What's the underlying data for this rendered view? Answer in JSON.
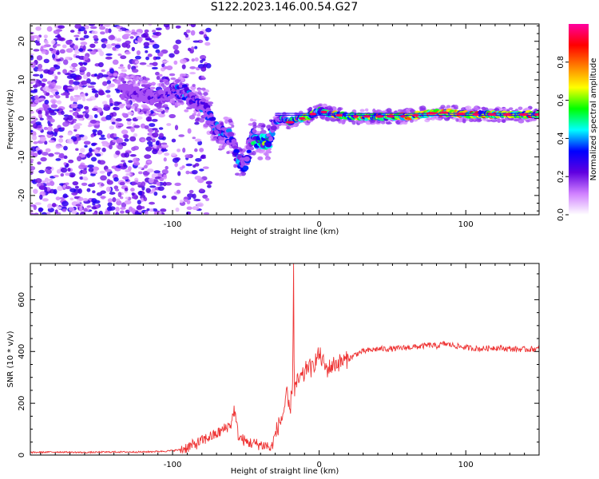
{
  "title": "S122.2023.146.00.54.G27",
  "chart_data": [
    {
      "type": "heatmap",
      "xlabel": "Height of straight line (km)",
      "ylabel": "Frequency (Hz)",
      "xlim": [
        -197,
        150
      ],
      "ylim": [
        -25,
        24.5
      ],
      "x_ticks": [
        "-100",
        "0",
        "100"
      ],
      "x_tick_values": [
        -100,
        0,
        100
      ],
      "y_ticks": [
        "-20",
        "-10",
        "0",
        "10",
        "20"
      ],
      "y_tick_values": [
        -20,
        -10,
        0,
        10,
        20
      ],
      "colorbar": {
        "label": "Normalized spectral amplitude",
        "range": [
          0,
          1
        ],
        "ticks": [
          "0.0",
          "0.2",
          "0.4",
          "0.6",
          "0.8"
        ],
        "tick_values": [
          0,
          0.2,
          0.4,
          0.6,
          0.8
        ],
        "colors": [
          "#ffffff",
          "#d080ff",
          "#6000e0",
          "#0000ff",
          "#00ffff",
          "#00ff00",
          "#ffff00",
          "#ff8000",
          "#ff0000",
          "#ff00a0"
        ]
      },
      "ridge": {
        "x": [
          -130,
          -118,
          -110,
          -100,
          -92,
          -85,
          -78,
          -72,
          -66,
          -60,
          -55,
          -50,
          -46,
          -42,
          -38,
          -34,
          -30,
          -25,
          -20,
          -15,
          -10,
          -5,
          0,
          10,
          20,
          30,
          40,
          50,
          60,
          70,
          80,
          90,
          100,
          110,
          120,
          150
        ],
        "y": [
          7,
          6,
          5,
          7,
          7,
          4,
          3,
          -2,
          -4,
          -5,
          -11,
          -12,
          -4,
          -6,
          -6,
          -6,
          -1,
          0,
          -1,
          0,
          0,
          1,
          2,
          1,
          0.5,
          0.5,
          0.5,
          0.5,
          0.5,
          1,
          1.5,
          1.5,
          1,
          1,
          1,
          1
        ],
        "amplitude": [
          0.25,
          0.25,
          0.3,
          0.35,
          0.45,
          0.35,
          0.4,
          0.4,
          0.45,
          0.4,
          0.45,
          0.4,
          0.45,
          0.7,
          0.7,
          0.6,
          0.4,
          0.5,
          0.6,
          0.7,
          0.75,
          0.7,
          0.6,
          0.8,
          0.85,
          0.85,
          0.85,
          0.9,
          0.92,
          0.95,
          0.95,
          0.95,
          0.9,
          0.9,
          0.9,
          0.92
        ]
      },
      "noise_region_x": [
        -197,
        -95
      ],
      "noise_amplitude": [
        0.05,
        0.3
      ]
    },
    {
      "type": "line",
      "xlabel": "Height of straight line (km)",
      "ylabel": "SNR (10 * v/v)",
      "xlim": [
        -197,
        150
      ],
      "ylim": [
        0,
        740
      ],
      "x_ticks": [
        "-100",
        "0",
        "100"
      ],
      "x_tick_values": [
        -100,
        0,
        100
      ],
      "y_ticks": [
        "0",
        "200",
        "400",
        "600"
      ],
      "y_tick_values": [
        0,
        200,
        400,
        600
      ],
      "series": [
        {
          "color": "#ee3333",
          "x": [
            -197,
            -180,
            -160,
            -140,
            -120,
            -105,
            -95,
            -90,
            -85,
            -80,
            -75,
            -70,
            -65,
            -60,
            -58,
            -55,
            -52,
            -50,
            -45,
            -40,
            -35,
            -33,
            -30,
            -28,
            -25,
            -22,
            -20,
            -18,
            -17.5,
            -17,
            -15,
            -12,
            -10,
            -8,
            -5,
            -3,
            0,
            5,
            10,
            15,
            20,
            25,
            30,
            40,
            50,
            60,
            70,
            75,
            80,
            85,
            90,
            95,
            100,
            110,
            120,
            130,
            140,
            150
          ],
          "y": [
            10,
            12,
            10,
            12,
            12,
            15,
            20,
            30,
            40,
            55,
            70,
            80,
            100,
            120,
            180,
            70,
            60,
            50,
            45,
            40,
            35,
            20,
            80,
            110,
            150,
            230,
            160,
            300,
            740,
            250,
            280,
            300,
            310,
            350,
            330,
            360,
            390,
            330,
            350,
            360,
            370,
            390,
            400,
            410,
            410,
            415,
            420,
            425,
            420,
            430,
            425,
            420,
            415,
            410,
            415,
            410,
            408,
            410
          ]
        }
      ]
    }
  ]
}
